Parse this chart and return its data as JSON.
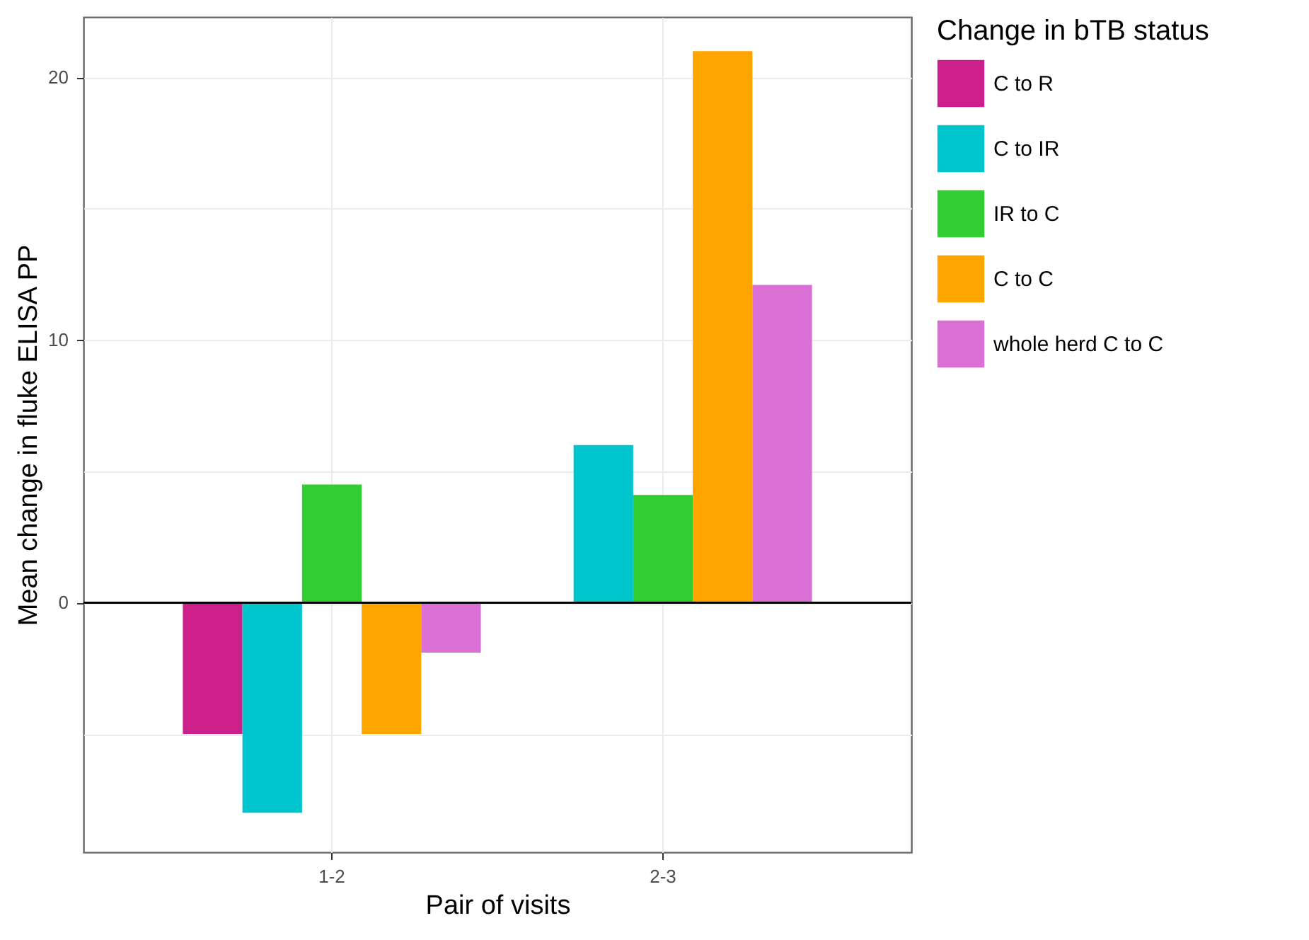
{
  "chart_data": {
    "type": "bar",
    "xlabel": "Pair of visits",
    "ylabel": "Mean change in fluke ELISA PP",
    "legend_title": "Change in bTB status",
    "categories": [
      "1-2",
      "2-3"
    ],
    "series": [
      {
        "name": "C to R",
        "color": "#cc1f8a",
        "values": [
          -5,
          null
        ]
      },
      {
        "name": "C to IR",
        "color": "#00c5cd",
        "values": [
          -8,
          6
        ]
      },
      {
        "name": "IR to C",
        "color": "#32cd32",
        "values": [
          4.5,
          4.1
        ]
      },
      {
        "name": "C to C",
        "color": "#ffa500",
        "values": [
          -5,
          21
        ]
      },
      {
        "name": "whole herd C to C",
        "color": "#da70d6",
        "values": [
          -1.9,
          12.1
        ]
      }
    ],
    "ylim": [
      -9.5,
      22.3
    ],
    "yticks": [
      {
        "value": -5,
        "label": null
      },
      0,
      {
        "value": 5,
        "label": null
      },
      10,
      {
        "value": 15,
        "label": null
      },
      20
    ],
    "ref_lines": [
      {
        "axis": "y",
        "value": 0,
        "color": "#000000"
      }
    ],
    "grid": true,
    "legend": "right"
  }
}
